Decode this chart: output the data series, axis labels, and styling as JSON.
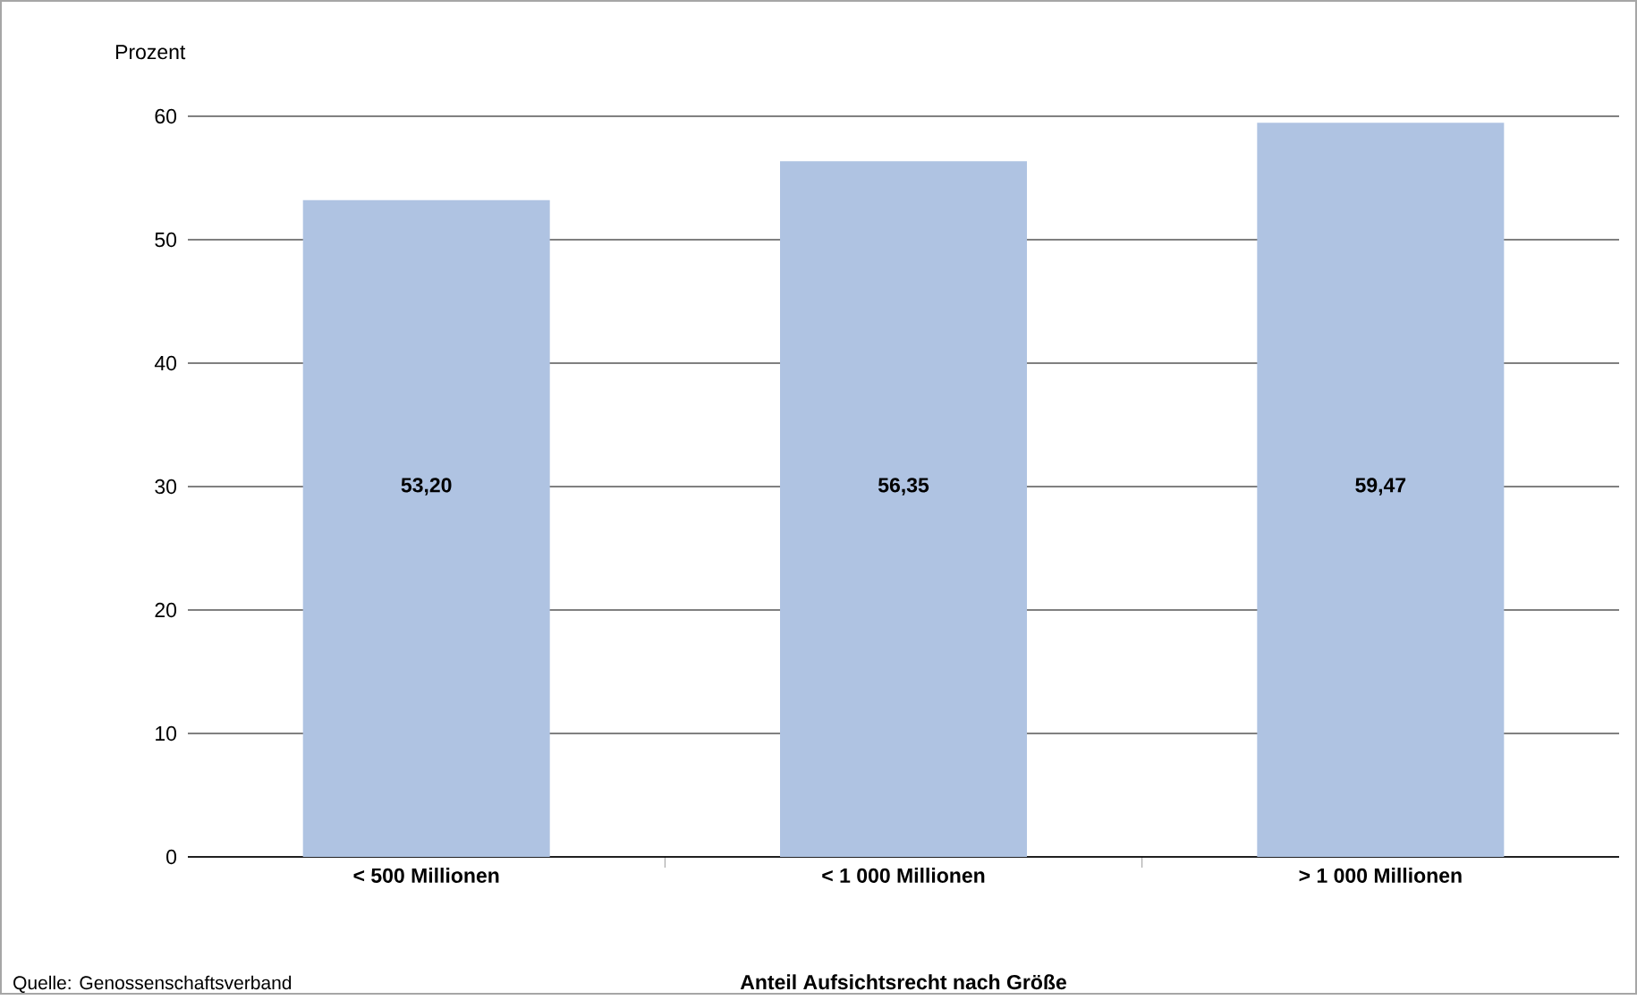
{
  "chart_data": {
    "type": "bar",
    "ylabel": "Prozent",
    "xlabel": "Anteil Aufsichtsrecht nach Größe",
    "categories": [
      "< 500 Millionen",
      "< 1 000 Millionen",
      "> 1 000 Millionen"
    ],
    "values": [
      53.2,
      56.35,
      59.47
    ],
    "value_labels": [
      "53,20",
      "56,35",
      "59,47"
    ],
    "color": "#afc3e2",
    "ylim": [
      0,
      60
    ],
    "yticks": [
      0,
      10,
      20,
      30,
      40,
      50,
      60
    ],
    "grid": "y",
    "annotations": [
      "Quelle: Genossenschaftsverband"
    ]
  }
}
